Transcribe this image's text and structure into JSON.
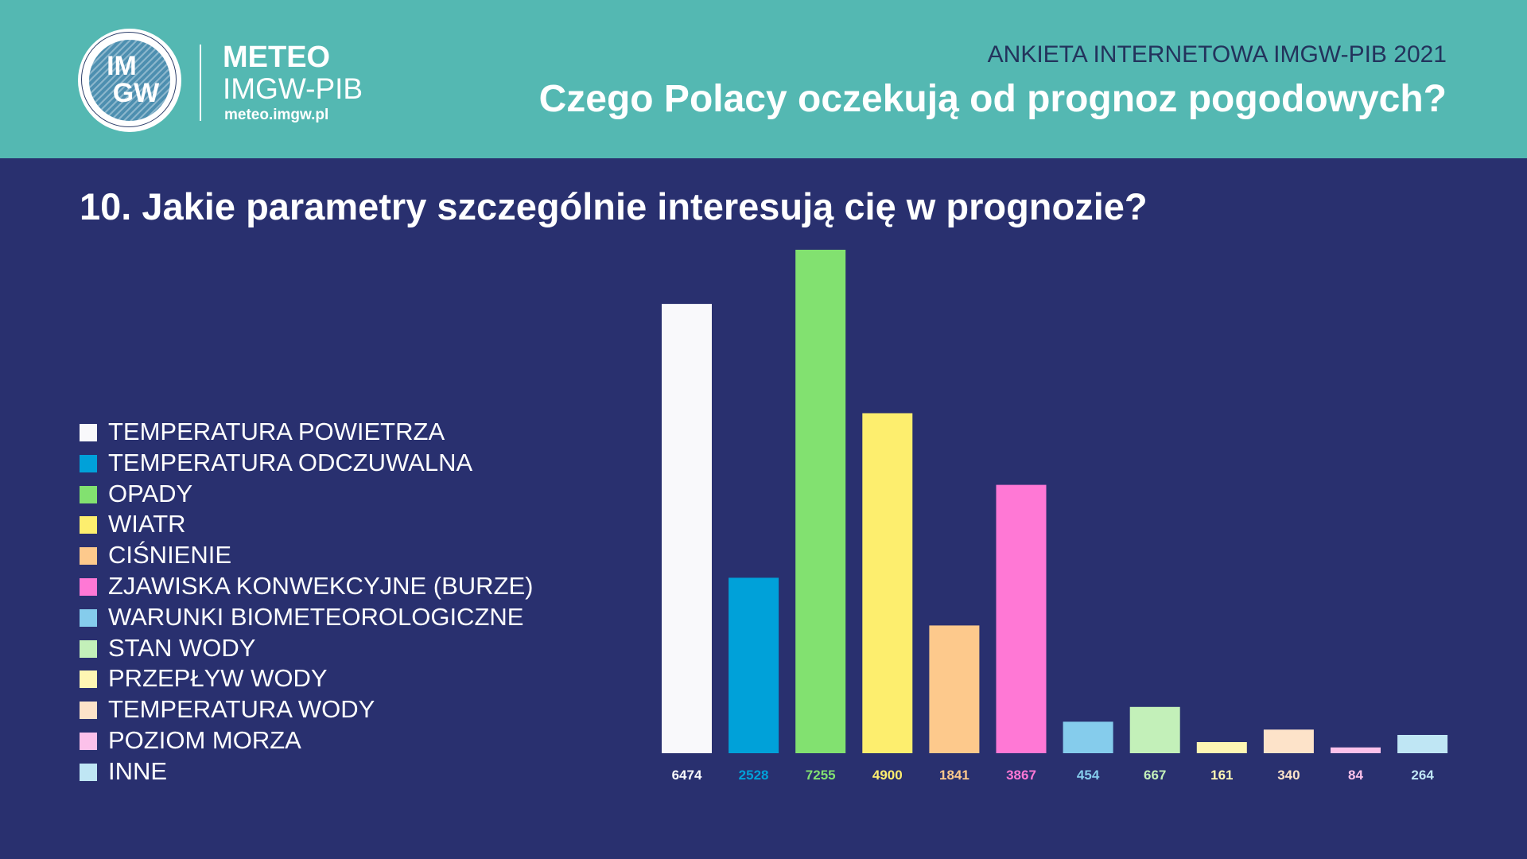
{
  "header": {
    "logo_text_top": "IM",
    "logo_text_bottom": "GW",
    "brand_line1": "METEO",
    "brand_line2": "IMGW-PIB",
    "brand_url": "meteo.imgw.pl",
    "survey_label": "ANKIETA INTERNETOWA IMGW-PIB 2021",
    "main_title": "Czego Polacy oczekują od prognoz pogodowych?"
  },
  "colors": {
    "background": "#29306f",
    "header": "#54b8b2"
  },
  "chart_data": {
    "type": "bar",
    "title": "10. Jakie parametry szczególnie interesują cię w prognozie?",
    "xlabel": "",
    "ylabel": "",
    "ylim": [
      0,
      7255
    ],
    "grid": false,
    "legend_position": "left",
    "categories": [
      "TEMPERATURA POWIETRZA",
      "TEMPERATURA ODCZUWALNA",
      "OPADY",
      "WIATR",
      "CIŚNIENIE",
      "ZJAWISKA KONWEKCYJNE (BURZE)",
      "WARUNKI BIOMETEOROLOGICZNE",
      "STAN WODY",
      "PRZEPŁYW WODY",
      "TEMPERATURA WODY",
      "POZIOM MORZA",
      "INNE"
    ],
    "values": [
      6474,
      2528,
      7255,
      4900,
      1841,
      3867,
      454,
      667,
      161,
      340,
      84,
      264
    ],
    "colors": [
      "#f9f9fb",
      "#00a1d9",
      "#82e170",
      "#fdee6e",
      "#fdc98c",
      "#ff78d5",
      "#85ccec",
      "#c3f0b9",
      "#fef6b3",
      "#fde3c9",
      "#fcc1ea",
      "#bfe6f4"
    ]
  }
}
